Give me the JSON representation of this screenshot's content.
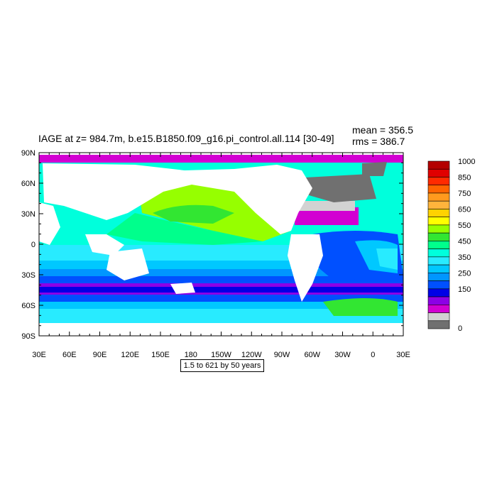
{
  "title": "IAGE at z= 984.7m, b.e15.B1850.f09_g16.pi_control.all.114 [30-49]",
  "stats": {
    "mean": "mean = 356.5",
    "rms": "rms = 386.7"
  },
  "info_box": "1.5 to 621 by 50 years",
  "axes": {
    "lat_labels": [
      "90N",
      "60N",
      "30N",
      "0",
      "30S",
      "60S",
      "90S"
    ],
    "lon_labels": [
      "30E",
      "60E",
      "90E",
      "120E",
      "150E",
      "180",
      "150W",
      "120W",
      "90W",
      "60W",
      "30W",
      "0",
      "30E"
    ]
  },
  "colorbar": {
    "labels": [
      "1000",
      "850",
      "750",
      "650",
      "550",
      "450",
      "350",
      "250",
      "150",
      "0"
    ],
    "colors": [
      "#b40000",
      "#e00000",
      "#ff2a00",
      "#ff6400",
      "#ff9a1e",
      "#ffb43c",
      "#ffd200",
      "#ffff00",
      "#96ff00",
      "#32e632",
      "#00ff8c",
      "#00ffdc",
      "#28ebff",
      "#00c8ff",
      "#0096ff",
      "#0050ff",
      "#0000e6",
      "#8c00e6",
      "#d200d2",
      "#d2d2d2",
      "#707070"
    ]
  },
  "map": {
    "land_color": "#ffffff",
    "ocean_fill_default": "#00e6c8"
  }
}
